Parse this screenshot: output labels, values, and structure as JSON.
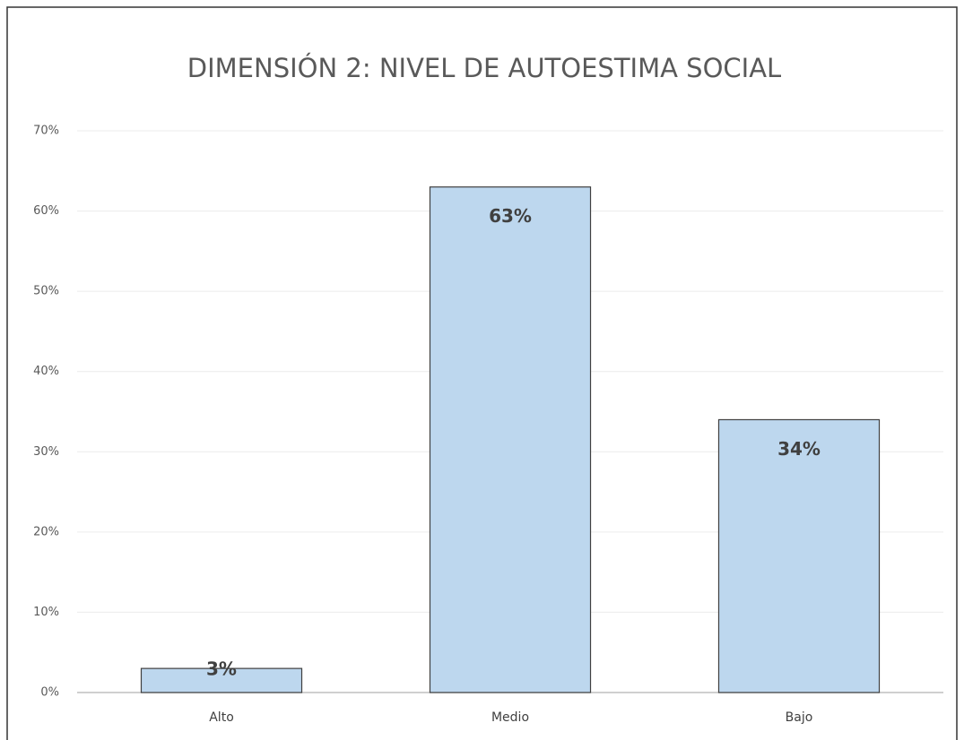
{
  "chart_data": {
    "type": "bar",
    "title": "DIMENSIÓN 2: NIVEL DE AUTOESTIMA SOCIAL",
    "categories": [
      "Alto",
      "Medio",
      "Bajo"
    ],
    "values": [
      3,
      63,
      34
    ],
    "value_labels": [
      "3%",
      "63%",
      "34%"
    ],
    "color": "#bdd7ee",
    "ylim": [
      0,
      70
    ],
    "yticks": [
      {
        "value": 0,
        "label": "0%"
      },
      {
        "value": 10,
        "label": "10%"
      },
      {
        "value": 20,
        "label": "20%"
      },
      {
        "value": 30,
        "label": "30%"
      },
      {
        "value": 40,
        "label": "40%"
      },
      {
        "value": 50,
        "label": "50%"
      },
      {
        "value": 60,
        "label": "60%"
      },
      {
        "value": 70,
        "label": "70%"
      }
    ],
    "grid": true
  }
}
